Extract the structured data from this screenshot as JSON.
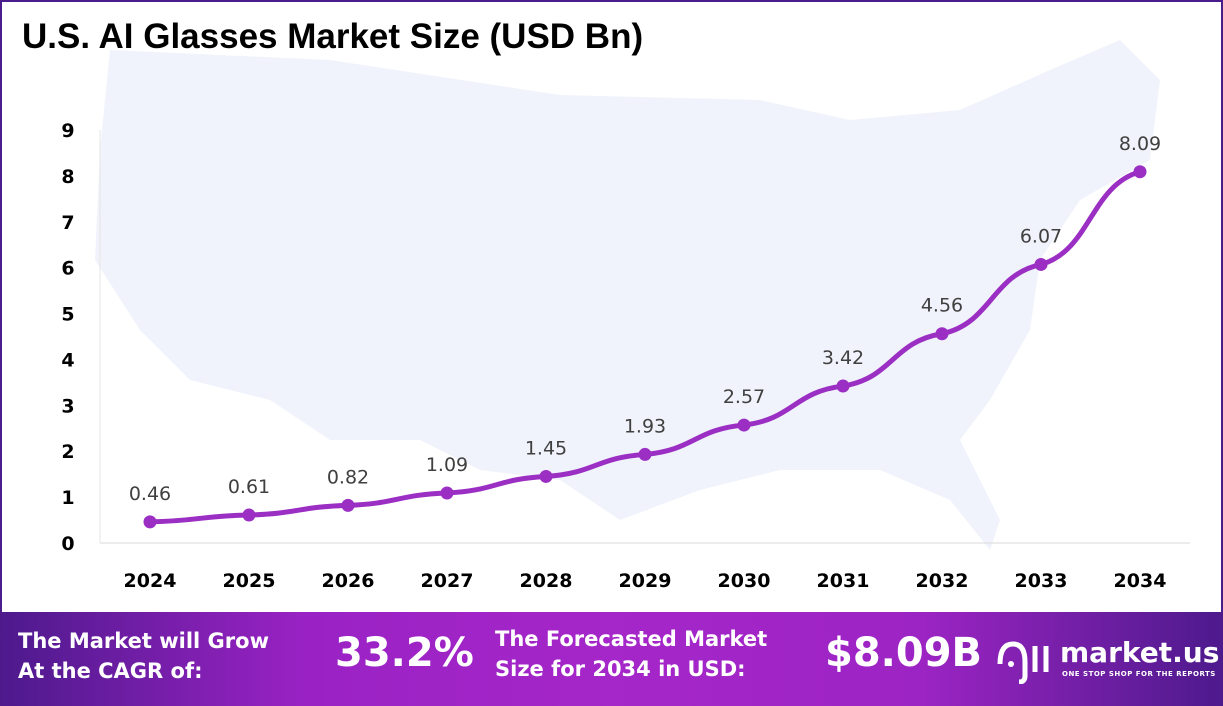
{
  "chart_data": {
    "type": "line",
    "title": "U.S. AI Glasses Market Size (USD Bn)",
    "categories": [
      "2024",
      "2025",
      "2026",
      "2027",
      "2028",
      "2029",
      "2030",
      "2031",
      "2032",
      "2033",
      "2034"
    ],
    "values": [
      0.46,
      0.61,
      0.82,
      1.09,
      1.45,
      1.93,
      2.57,
      3.42,
      4.56,
      6.07,
      8.09
    ],
    "data_labels": [
      "0.46",
      "0.61",
      "0.82",
      "1.09",
      "1.45",
      "1.93",
      "2.57",
      "3.42",
      "4.56",
      "6.07",
      "8.09"
    ],
    "ylim": [
      0,
      9
    ],
    "yticks": [
      "0",
      "1",
      "2",
      "3",
      "4",
      "5",
      "6",
      "7",
      "8",
      "9"
    ],
    "grid": false,
    "line_color": "#9b2fc3",
    "xlabel": "",
    "ylabel": ""
  },
  "banner": {
    "cagr_label_line1": "The Market will Grow",
    "cagr_label_line2": "At the CAGR of:",
    "cagr_value": "33.2%",
    "forecast_label_line1": "The Forecasted Market",
    "forecast_label_line2": "Size for 2034 in USD:",
    "forecast_value": "$8.09B",
    "logo_text": "market.us",
    "logo_tagline": "ONE STOP SHOP FOR THE REPORTS"
  }
}
